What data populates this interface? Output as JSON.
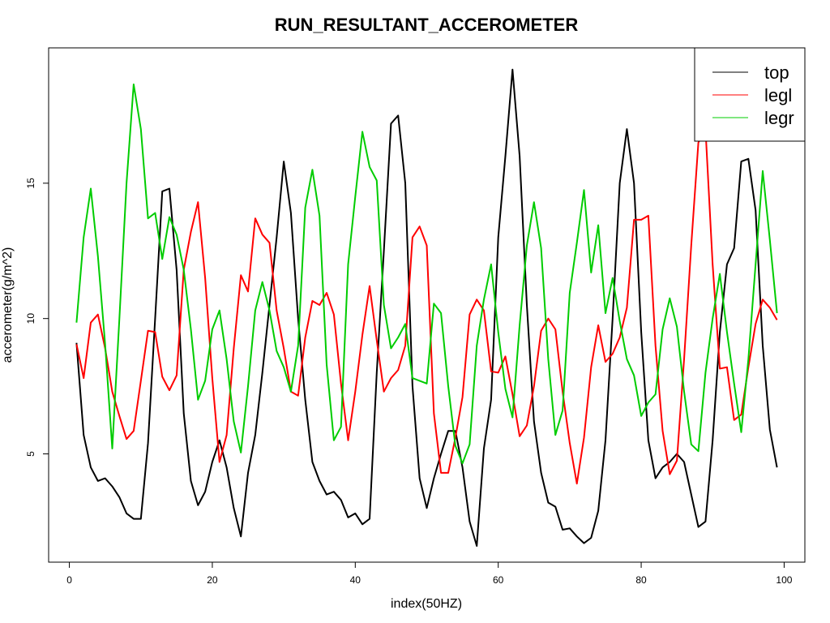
{
  "chart_data": {
    "type": "line",
    "title": "RUN_RESULTANT_ACCEROMETER",
    "xlabel": "index(50HZ)",
    "ylabel": "accerometer(g/m^2)",
    "xlim": [
      -2.9,
      102.9
    ],
    "ylim": [
      1.0,
      20.0
    ],
    "x_ticks": [
      0,
      20,
      40,
      60,
      80,
      100
    ],
    "y_ticks": [
      5,
      10,
      15
    ],
    "legend_position": "top-right",
    "grid": false,
    "x": [
      1,
      2,
      3,
      4,
      5,
      6,
      7,
      8,
      9,
      10,
      11,
      12,
      13,
      14,
      15,
      16,
      17,
      18,
      19,
      20,
      21,
      22,
      23,
      24,
      25,
      26,
      27,
      28,
      29,
      30,
      31,
      32,
      33,
      34,
      35,
      36,
      37,
      38,
      39,
      40,
      41,
      42,
      43,
      44,
      45,
      46,
      47,
      48,
      49,
      50,
      51,
      52,
      53,
      54,
      55,
      56,
      57,
      58,
      59,
      60,
      61,
      62,
      63,
      64,
      65,
      66,
      67,
      68,
      69,
      70,
      71,
      72,
      73,
      74,
      75,
      76,
      77,
      78,
      79,
      80,
      81,
      82,
      83,
      84,
      85,
      86,
      87,
      88,
      89,
      90,
      91,
      92,
      93,
      94,
      95,
      96,
      97,
      98,
      99
    ],
    "series": [
      {
        "name": "top",
        "color": "#000000",
        "values": [
          9.1,
          5.7,
          4.5,
          4.0,
          4.1,
          3.8,
          3.4,
          2.8,
          2.6,
          2.6,
          5.4,
          10.0,
          14.7,
          14.8,
          11.8,
          6.5,
          4.0,
          3.1,
          3.6,
          4.7,
          5.5,
          4.5,
          3.0,
          1.95,
          4.3,
          5.7,
          8.0,
          10.5,
          13.0,
          15.8,
          13.9,
          10.0,
          7.0,
          4.7,
          4.0,
          3.5,
          3.6,
          3.3,
          2.65,
          2.8,
          2.4,
          2.6,
          8.0,
          12.5,
          17.2,
          17.5,
          15.0,
          7.5,
          4.1,
          3.0,
          4.1,
          5.0,
          5.85,
          5.85,
          4.5,
          2.5,
          1.6,
          5.2,
          7.0,
          13.0,
          16.0,
          19.2,
          16.0,
          10.5,
          6.2,
          4.3,
          3.2,
          3.05,
          2.2,
          2.25,
          1.95,
          1.7,
          1.9,
          2.9,
          5.5,
          10.0,
          15.0,
          17.0,
          15.0,
          9.5,
          5.5,
          4.1,
          4.5,
          4.7,
          5.0,
          4.7,
          3.5,
          2.3,
          2.5,
          5.5,
          9.5,
          12.0,
          12.6,
          15.8,
          15.9,
          14.0,
          9.0,
          5.9,
          4.5
        ]
      },
      {
        "name": "legl",
        "color": "#ff0000",
        "values": [
          9.05,
          7.8,
          9.85,
          10.15,
          8.9,
          7.3,
          6.4,
          5.55,
          5.85,
          7.7,
          9.55,
          9.5,
          7.85,
          7.35,
          7.9,
          11.8,
          13.2,
          14.3,
          11.5,
          7.8,
          4.7,
          5.7,
          8.9,
          11.6,
          11.0,
          13.7,
          13.1,
          12.8,
          10.3,
          8.9,
          7.3,
          7.15,
          9.3,
          10.65,
          10.5,
          10.95,
          10.15,
          7.6,
          5.5,
          7.3,
          9.4,
          11.2,
          9.2,
          7.3,
          7.8,
          8.1,
          9.0,
          13.0,
          13.4,
          12.7,
          6.5,
          4.3,
          4.3,
          5.6,
          7.1,
          10.15,
          10.7,
          10.3,
          8.05,
          8.0,
          8.6,
          7.2,
          5.65,
          6.05,
          7.5,
          9.55,
          10.0,
          9.6,
          7.3,
          5.4,
          3.9,
          5.6,
          8.2,
          9.75,
          8.4,
          8.7,
          9.3,
          10.4,
          13.65,
          13.65,
          13.8,
          9.0,
          5.85,
          4.25,
          4.75,
          8.5,
          12.7,
          16.5,
          17.0,
          12.0,
          8.15,
          8.2,
          6.25,
          6.45,
          8.2,
          9.8,
          10.7,
          10.4,
          9.95
        ]
      },
      {
        "name": "legr",
        "color": "#00cc00",
        "values": [
          9.85,
          13.0,
          14.8,
          12.3,
          9.05,
          5.2,
          10.0,
          15.0,
          18.65,
          17.0,
          13.7,
          13.9,
          12.2,
          13.75,
          13.1,
          11.8,
          9.6,
          7.0,
          7.7,
          9.6,
          10.3,
          8.5,
          6.2,
          5.05,
          7.5,
          10.3,
          11.35,
          10.3,
          8.8,
          8.2,
          7.3,
          9.0,
          14.1,
          15.5,
          13.8,
          8.3,
          5.5,
          6.0,
          12.0,
          14.5,
          16.9,
          15.6,
          15.1,
          10.5,
          8.9,
          9.3,
          9.8,
          7.8,
          7.7,
          7.6,
          10.55,
          10.2,
          7.5,
          5.3,
          4.65,
          5.35,
          9.0,
          10.7,
          12.0,
          9.5,
          7.4,
          6.35,
          9.75,
          12.7,
          14.3,
          12.6,
          8.5,
          5.7,
          6.6,
          10.95,
          12.8,
          14.75,
          11.7,
          13.45,
          10.2,
          11.5,
          9.9,
          8.5,
          7.9,
          6.4,
          6.9,
          7.2,
          9.6,
          10.75,
          9.7,
          7.3,
          5.35,
          5.1,
          8.0,
          10.0,
          11.65,
          9.5,
          7.6,
          5.8,
          8.5,
          12.0,
          15.45,
          12.9,
          10.2
        ]
      }
    ]
  }
}
